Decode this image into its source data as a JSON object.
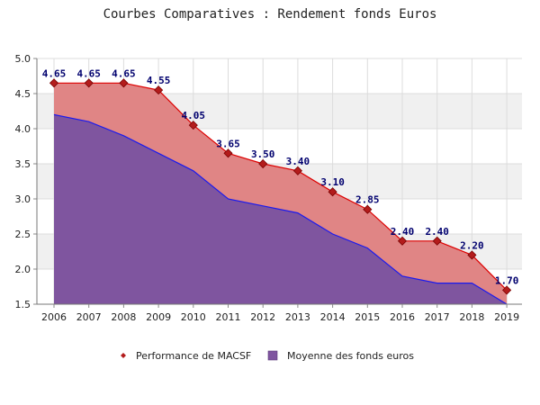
{
  "chart_data": {
    "type": "area",
    "title": "Courbes Comparatives : Rendement fonds Euros",
    "xlabel": "",
    "ylabel": "",
    "categories": [
      "2006",
      "2007",
      "2008",
      "2009",
      "2010",
      "2011",
      "2012",
      "2013",
      "2014",
      "2015",
      "2016",
      "2017",
      "2018",
      "2019"
    ],
    "ylim": [
      1.5,
      5.0
    ],
    "yticks": [
      "1.5",
      "2.0",
      "2.5",
      "3.0",
      "3.5",
      "4.0",
      "4.5",
      "5.0"
    ],
    "grid": true,
    "legend_position": "bottom",
    "series": [
      {
        "name": "Performance de MACSF",
        "values": [
          4.65,
          4.65,
          4.65,
          4.55,
          4.05,
          3.65,
          3.5,
          3.4,
          3.1,
          2.85,
          2.4,
          2.4,
          2.2,
          1.7
        ],
        "labels": [
          "4.65",
          "4.65",
          "4.65",
          "4.55",
          "4.05",
          "3.65",
          "3.50",
          "3.40",
          "3.10",
          "2.85",
          "2.40",
          "2.40",
          "2.20",
          "1.70"
        ],
        "fill_color": "#e08585",
        "line_color": "#dd0000",
        "marker_color": "#b31c1c"
      },
      {
        "name": "Moyenne des fonds euros",
        "values": [
          4.2,
          4.1,
          3.9,
          3.65,
          3.4,
          3.0,
          2.9,
          2.8,
          2.5,
          2.3,
          1.9,
          1.8,
          1.8,
          1.5
        ],
        "fill_color": "#7f559f",
        "line_color": "#1a1aee"
      }
    ]
  }
}
